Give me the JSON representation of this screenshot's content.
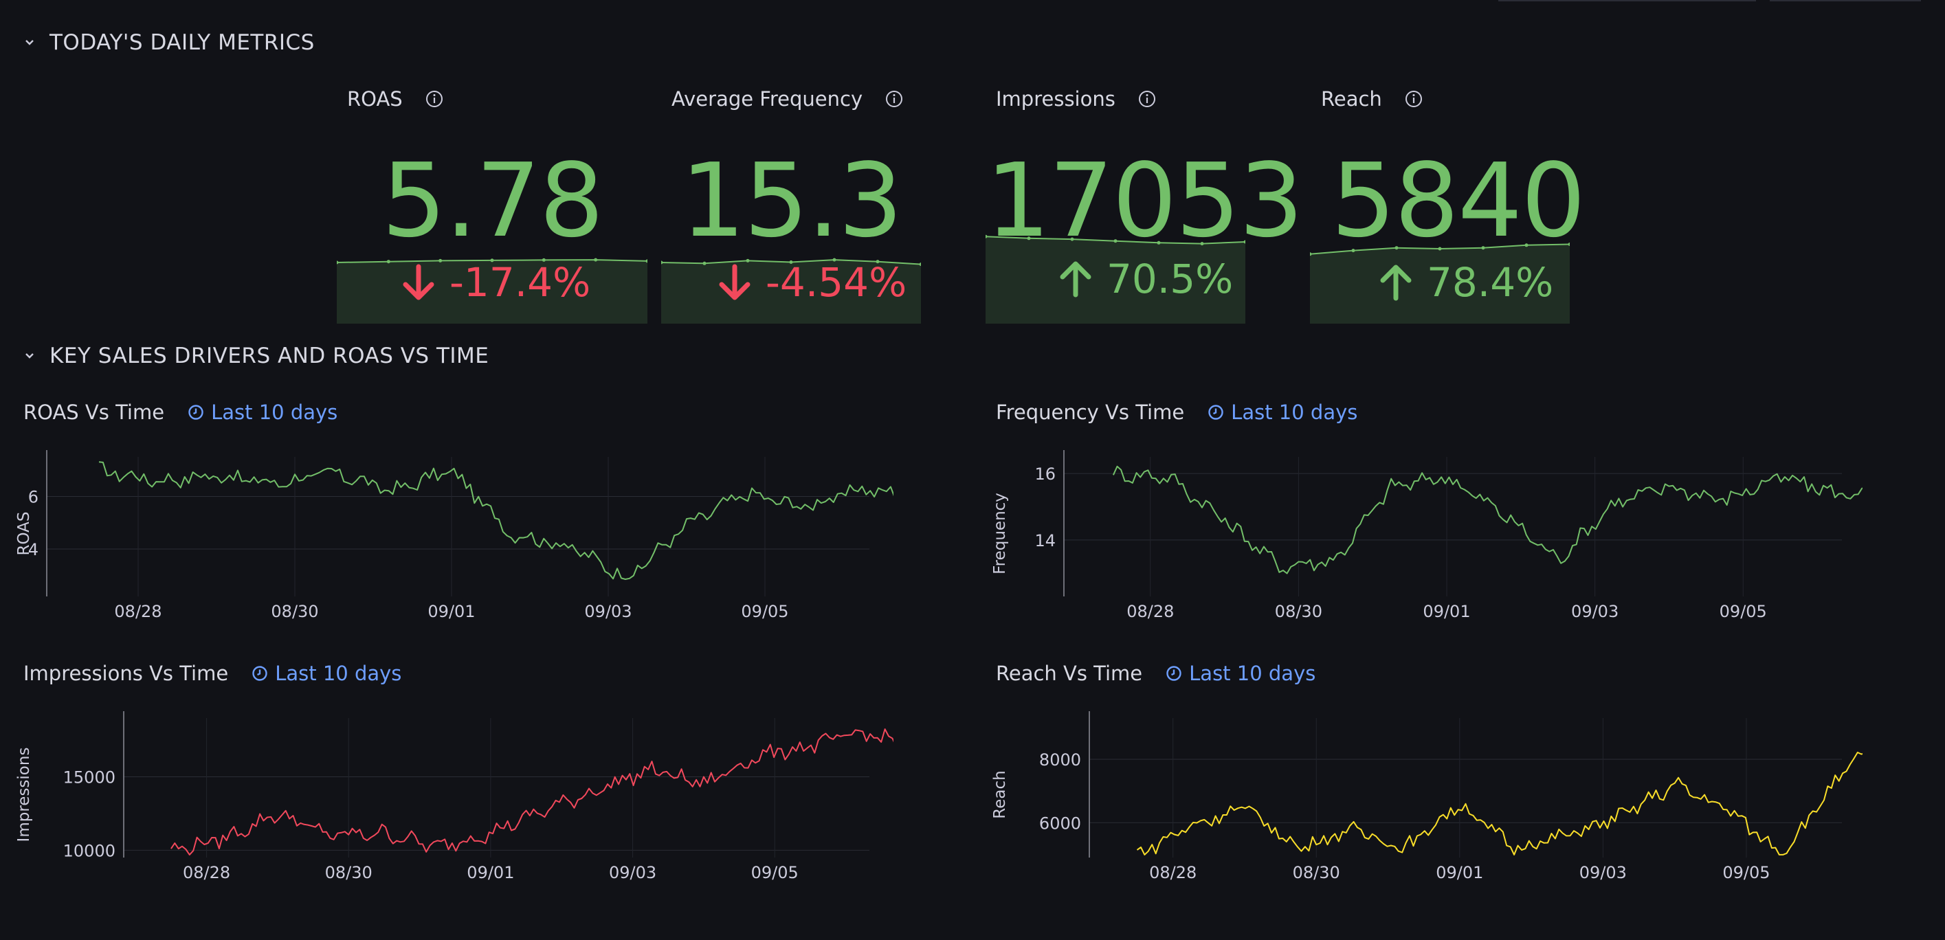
{
  "rows": {
    "daily_metrics": "TODAY'S DAILY METRICS",
    "drivers": "KEY SALES DRIVERS AND ROAS VS TIME"
  },
  "stats": [
    {
      "title": "ROAS",
      "value": "5.78",
      "delta": "-17.4%",
      "direction": "down",
      "delta_color": "#f2495c"
    },
    {
      "title": "Average Frequency",
      "value": "15.3",
      "delta": "-4.54%",
      "direction": "down",
      "delta_color": "#f2495c"
    },
    {
      "title": "Impressions",
      "value": "17053",
      "delta": "70.5%",
      "direction": "up",
      "delta_color": "#73bf69"
    },
    {
      "title": "Reach",
      "value": "5840",
      "delta": "78.4%",
      "direction": "up",
      "delta_color": "#73bf69"
    }
  ],
  "colors": {
    "green": "#73bf69",
    "red": "#f2495c",
    "yellow": "#fade2a",
    "blue": "#6e9fff",
    "background": "#111217"
  },
  "panels": {
    "roas": {
      "title": "ROAS Vs Time",
      "time": "Last 10 days"
    },
    "frequency": {
      "title": "Frequency Vs Time",
      "time": "Last 10 days"
    },
    "impressions": {
      "title": "Impressions Vs Time",
      "time": "Last 10 days"
    },
    "reach": {
      "title": "Reach Vs Time",
      "time": "Last 10 days"
    }
  },
  "chart_data": [
    {
      "id": "roas",
      "type": "line",
      "title": "ROAS Vs Time",
      "xlabel": "",
      "ylabel": "ROAS",
      "color": "#73bf69",
      "x_ticks": [
        "08/28",
        "08/30",
        "09/01",
        "09/03",
        "09/05"
      ],
      "y_ticks": [
        4,
        6
      ],
      "ylim": [
        2.2,
        7.5
      ],
      "grid": true,
      "x": [
        "08/27 12:00",
        "08/28 06:00",
        "08/29 00:00",
        "08/29 18:00",
        "08/30 12:00",
        "08/31 06:00",
        "09/01 00:00",
        "09/01 18:00",
        "09/02 12:00",
        "09/03 06:00",
        "09/04 00:00",
        "09/04 18:00",
        "09/05 12:00",
        "09/06 06:00",
        "09/07 00:00"
      ],
      "values": [
        7.0,
        6.6,
        6.8,
        6.5,
        6.9,
        6.2,
        7.0,
        4.6,
        4.1,
        2.9,
        4.9,
        6.1,
        5.6,
        6.3,
        5.9
      ]
    },
    {
      "id": "frequency",
      "type": "line",
      "title": "Frequency Vs Time",
      "xlabel": "",
      "ylabel": "Frequency",
      "color": "#73bf69",
      "x_ticks": [
        "08/28",
        "08/30",
        "09/01",
        "09/03",
        "09/05"
      ],
      "y_ticks": [
        14,
        16
      ],
      "ylim": [
        12.3,
        16.5
      ],
      "grid": true,
      "x": [
        "08/27 12:00",
        "08/28 06:00",
        "08/29 00:00",
        "08/29 18:00",
        "08/30 12:00",
        "08/31 06:00",
        "09/01 00:00",
        "09/01 18:00",
        "09/02 12:00",
        "09/03 06:00",
        "09/04 00:00",
        "09/04 18:00",
        "09/05 12:00",
        "09/06 06:00",
        "09/07 00:00"
      ],
      "values": [
        16.0,
        15.9,
        14.6,
        13.2,
        13.4,
        15.6,
        15.9,
        14.8,
        13.4,
        15.1,
        15.6,
        15.2,
        15.9,
        15.4,
        15.4
      ]
    },
    {
      "id": "impressions",
      "type": "line",
      "title": "Impressions Vs Time",
      "xlabel": "",
      "ylabel": "Impressions",
      "color": "#f2495c",
      "x_ticks": [
        "08/28",
        "08/30",
        "09/01",
        "09/03",
        "09/05"
      ],
      "y_ticks": [
        10000,
        15000
      ],
      "ylim": [
        9500,
        19000
      ],
      "grid": true,
      "x": [
        "08/27 12:00",
        "08/28 06:00",
        "08/29 00:00",
        "08/29 18:00",
        "08/30 12:00",
        "08/31 06:00",
        "09/01 00:00",
        "09/01 18:00",
        "09/02 12:00",
        "09/03 06:00",
        "09/04 00:00",
        "09/04 18:00",
        "09/05 12:00",
        "09/06 06:00",
        "09/07 00:00"
      ],
      "values": [
        10000,
        10800,
        12500,
        11000,
        11200,
        10200,
        11200,
        12700,
        14100,
        15500,
        14500,
        16400,
        17100,
        18000,
        17000
      ]
    },
    {
      "id": "reach",
      "type": "line",
      "title": "Reach Vs Time",
      "xlabel": "",
      "ylabel": "Reach",
      "color": "#fade2a",
      "x_ticks": [
        "08/28",
        "08/30",
        "09/01",
        "09/03",
        "09/05"
      ],
      "y_ticks": [
        6000,
        8000
      ],
      "ylim": [
        4900,
        9300
      ],
      "grid": true,
      "x": [
        "08/27 12:00",
        "08/28 06:00",
        "08/29 00:00",
        "08/29 18:00",
        "08/30 12:00",
        "08/31 06:00",
        "09/01 00:00",
        "09/01 18:00",
        "09/02 12:00",
        "09/03 06:00",
        "09/04 00:00",
        "09/04 18:00",
        "09/05 12:00",
        "09/06 06:00",
        "09/07 00:00"
      ],
      "values": [
        5000,
        5900,
        6500,
        5200,
        5800,
        5200,
        6600,
        5200,
        5600,
        6200,
        7200,
        6400,
        5000,
        7300,
        9000
      ]
    }
  ],
  "sparklines": [
    [
      0.5,
      0.45,
      0.4,
      0.38,
      0.36,
      0.35,
      0.42
    ],
    [
      0.5,
      0.55,
      0.4,
      0.48,
      0.35,
      0.45,
      0.6
    ],
    [
      0.2,
      0.3,
      0.35,
      0.45,
      0.55,
      0.6,
      0.5
    ],
    [
      0.8,
      0.6,
      0.45,
      0.5,
      0.45,
      0.3,
      0.25
    ]
  ]
}
